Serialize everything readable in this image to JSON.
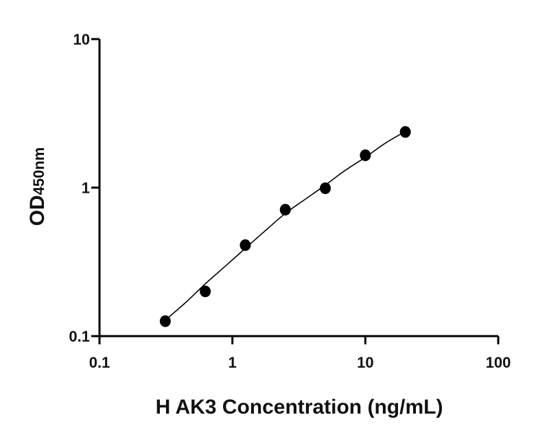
{
  "chart_data": {
    "type": "scatter",
    "title": "",
    "xlabel": "H AK3 Concentration (ng/mL)",
    "ylabel_main": "OD",
    "ylabel_sub": "450nm",
    "x_scale": "log",
    "y_scale": "log",
    "xlim": [
      0.1,
      100
    ],
    "ylim": [
      0.1,
      10
    ],
    "x_ticks": [
      "0.1",
      "1",
      "10",
      "100"
    ],
    "y_ticks": [
      "0.1",
      "1",
      "10"
    ],
    "grid": false,
    "legend": "none",
    "point_color": "#000000",
    "line_color": "#000000",
    "points": [
      {
        "x": 0.3125,
        "y": 0.126
      },
      {
        "x": 0.625,
        "y": 0.2
      },
      {
        "x": 1.25,
        "y": 0.41
      },
      {
        "x": 2.5,
        "y": 0.71
      },
      {
        "x": 5,
        "y": 0.99
      },
      {
        "x": 10,
        "y": 1.65
      },
      {
        "x": 20,
        "y": 2.37
      }
    ],
    "fit_curve": [
      {
        "x": 0.3125,
        "y": 0.128
      },
      {
        "x": 0.45,
        "y": 0.17
      },
      {
        "x": 0.625,
        "y": 0.225
      },
      {
        "x": 0.9,
        "y": 0.3
      },
      {
        "x": 1.25,
        "y": 0.39
      },
      {
        "x": 1.8,
        "y": 0.52
      },
      {
        "x": 2.5,
        "y": 0.67
      },
      {
        "x": 3.5,
        "y": 0.83
      },
      {
        "x": 5,
        "y": 1.04
      },
      {
        "x": 7,
        "y": 1.3
      },
      {
        "x": 10,
        "y": 1.6
      },
      {
        "x": 14,
        "y": 1.98
      },
      {
        "x": 20,
        "y": 2.39
      }
    ]
  }
}
